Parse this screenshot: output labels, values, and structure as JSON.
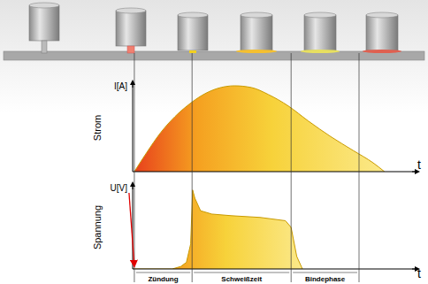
{
  "chart_data": [
    {
      "type": "area",
      "ylabel": "Strom",
      "yunit": "I[A]",
      "xlabel": "t",
      "x": [
        0.6,
        5,
        10,
        15,
        20,
        25,
        30,
        36,
        42,
        48,
        55,
        62,
        70,
        78,
        85,
        89
      ],
      "values": [
        0,
        22,
        45,
        63,
        77,
        88,
        95,
        98,
        96,
        88,
        75,
        58,
        40,
        24,
        10,
        0
      ],
      "xlim": [
        0,
        100
      ],
      "ylim": [
        0,
        100
      ],
      "tick_labels": false,
      "color": "#f7d23a"
    },
    {
      "type": "area",
      "ylabel": "Spannung",
      "yunit": "U[V]",
      "xlabel": "t",
      "x": [
        0,
        14,
        17,
        19,
        20.5,
        21.2,
        22,
        24,
        28,
        35,
        45,
        54,
        56,
        58,
        60
      ],
      "values": [
        0,
        0,
        3,
        8,
        30,
        95,
        85,
        70,
        66,
        64,
        62,
        58,
        50,
        15,
        0
      ],
      "xlim": [
        0,
        100
      ],
      "ylim": [
        0,
        100
      ],
      "tick_labels": false,
      "color": "#f7d23a"
    }
  ],
  "phases": [
    {
      "label": "Zündung",
      "start": 0.6,
      "end": 21
    },
    {
      "label": "Schweißzeit",
      "start": 21,
      "end": 56
    },
    {
      "label": "Bindephase",
      "start": 56,
      "end": 80
    }
  ]
}
